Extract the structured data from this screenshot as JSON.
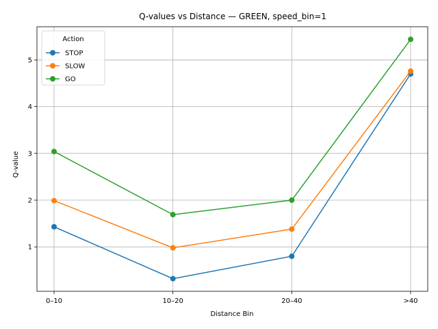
{
  "chart_data": {
    "type": "line",
    "title": "Q-values vs Distance — GREEN, speed_bin=1",
    "xlabel": "Distance Bin",
    "ylabel": "Q-value",
    "categories": [
      "0–10",
      "10–20",
      "20–40",
      ">40"
    ],
    "ylim": [
      0.05,
      5.71
    ],
    "yticks": [
      1,
      2,
      3,
      4,
      5
    ],
    "grid": true,
    "legend": {
      "title": "Action",
      "placement": "upper-left"
    },
    "series": [
      {
        "name": "STOP",
        "color": "#1f77b4",
        "values": [
          1.43,
          0.32,
          0.8,
          4.7
        ]
      },
      {
        "name": "SLOW",
        "color": "#ff7f0e",
        "values": [
          1.99,
          0.98,
          1.38,
          4.76
        ]
      },
      {
        "name": "GO",
        "color": "#2ca02c",
        "values": [
          3.04,
          1.69,
          2.0,
          5.44
        ]
      }
    ]
  }
}
